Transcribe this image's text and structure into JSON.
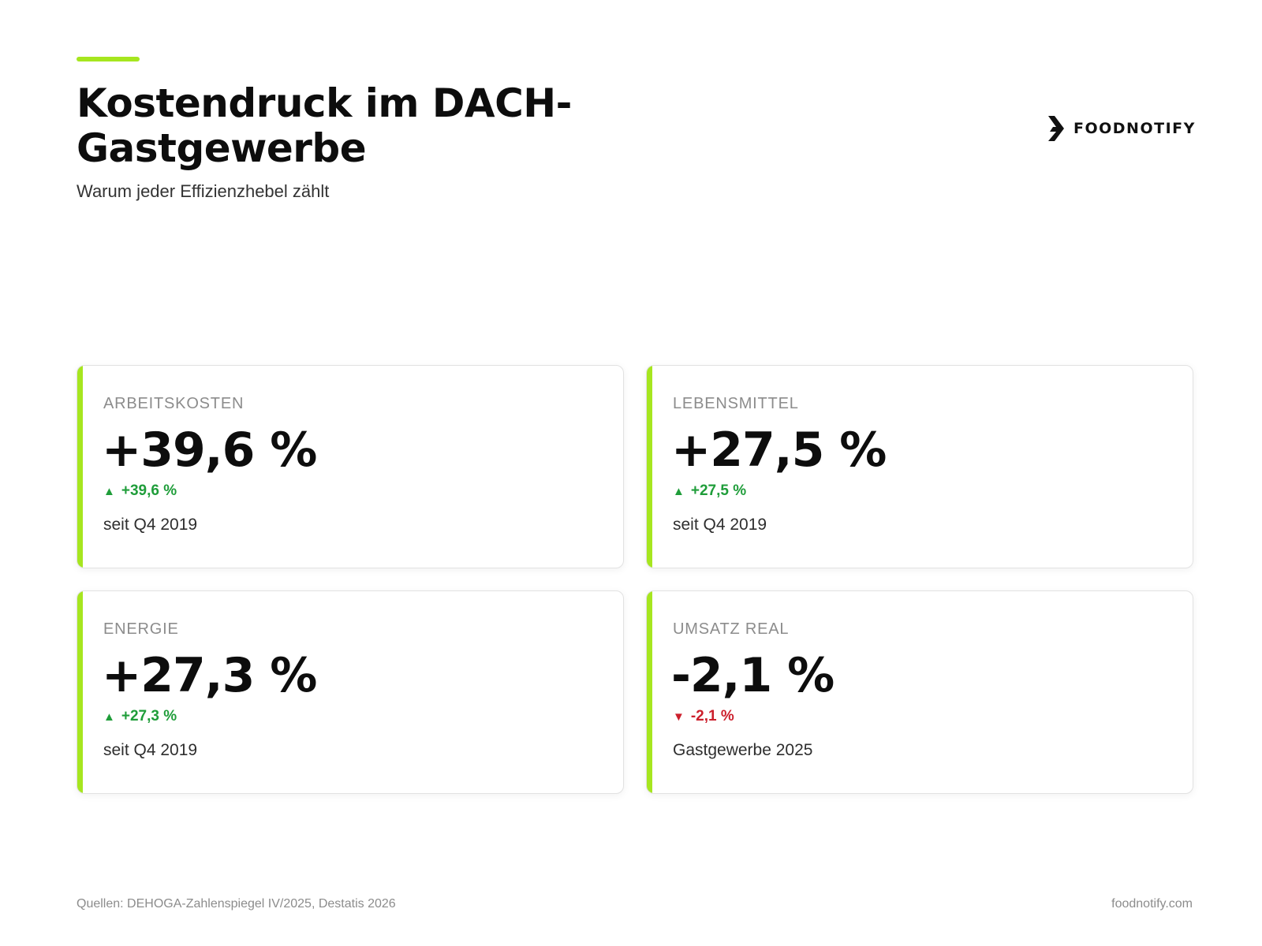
{
  "header": {
    "title": "Kostendruck im DACH-Gastgewerbe",
    "subtitle": "Warum jeder Effizienzhebel zählt"
  },
  "brand": {
    "name": "FOODNOTIFY",
    "logo_icon": "foodnotify-chevron-icon",
    "accent_color": "#a6e61f"
  },
  "cards": [
    {
      "label": "ARBEITSKOSTEN",
      "value": "+39,6 %",
      "delta": "+39,6 %",
      "direction": "up",
      "note": "seit Q4 2019"
    },
    {
      "label": "LEBENSMITTEL",
      "value": "+27,5 %",
      "delta": "+27,5 %",
      "direction": "up",
      "note": "seit Q4 2019"
    },
    {
      "label": "ENERGIE",
      "value": "+27,3 %",
      "delta": "+27,3 %",
      "direction": "up",
      "note": "seit Q4 2019"
    },
    {
      "label": "UMSATZ REAL",
      "value": "-2,1 %",
      "delta": "-2,1 %",
      "direction": "down",
      "note": "Gastgewerbe 2025"
    }
  ],
  "indicators": {
    "up_arrow": "▲",
    "down_arrow": "▼",
    "up_color": "#1f9d3a",
    "down_color": "#cc1f2c"
  },
  "footer": {
    "sources": "Quellen: DEHOGA-Zahlenspiegel IV/2025, Destatis 2026",
    "website": "foodnotify.com"
  }
}
